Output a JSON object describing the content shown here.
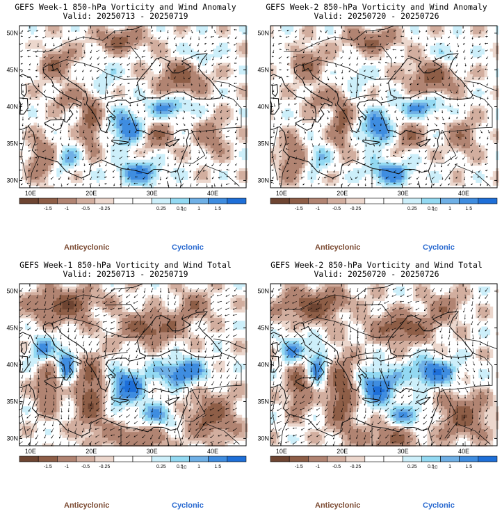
{
  "panels": [
    {
      "title": "GEFS Week-1 850-hPa Vorticity and Wind Anomaly",
      "valid": "Valid: 20250713 - 20250719",
      "kind": "anomaly",
      "seed": 11
    },
    {
      "title": "GEFS Week-2 850-hPa Vorticity and Wind Anomaly",
      "valid": "Valid: 20250720 - 20250726",
      "kind": "anomaly",
      "seed": 23
    },
    {
      "title": "GEFS Week-1 850-hPa Vorticity and Wind Total",
      "valid": "Valid: 20250713 - 20250719",
      "kind": "total",
      "seed": 37
    },
    {
      "title": "GEFS Week-2 850-hPa Vorticity and Wind Total",
      "valid": "Valid: 20250720 - 20250726",
      "kind": "total",
      "seed": 41
    }
  ],
  "axes": {
    "lon_ticks": [
      "10E",
      "20E",
      "30E",
      "40E"
    ],
    "lat_ticks": [
      "50N",
      "45N",
      "40N",
      "35N",
      "30N"
    ]
  },
  "colorbar": {
    "ticks": [
      "-1.5",
      "-1",
      "-0.5",
      "-0.25",
      "0.25",
      "0.5",
      "1",
      "1.5"
    ],
    "scale_label": "10",
    "colors": [
      "#6e4532",
      "#8e5e47",
      "#b18472",
      "#d2ae9f",
      "#ecd7cd",
      "#ffffff",
      "#ffffff",
      "#cdeffa",
      "#93d9f2",
      "#6fb0e6",
      "#3f8de0",
      "#1e6fd8"
    ]
  },
  "legend": {
    "anticyclonic": "Anticyclonic",
    "cyclonic": "Cyclonic"
  }
}
